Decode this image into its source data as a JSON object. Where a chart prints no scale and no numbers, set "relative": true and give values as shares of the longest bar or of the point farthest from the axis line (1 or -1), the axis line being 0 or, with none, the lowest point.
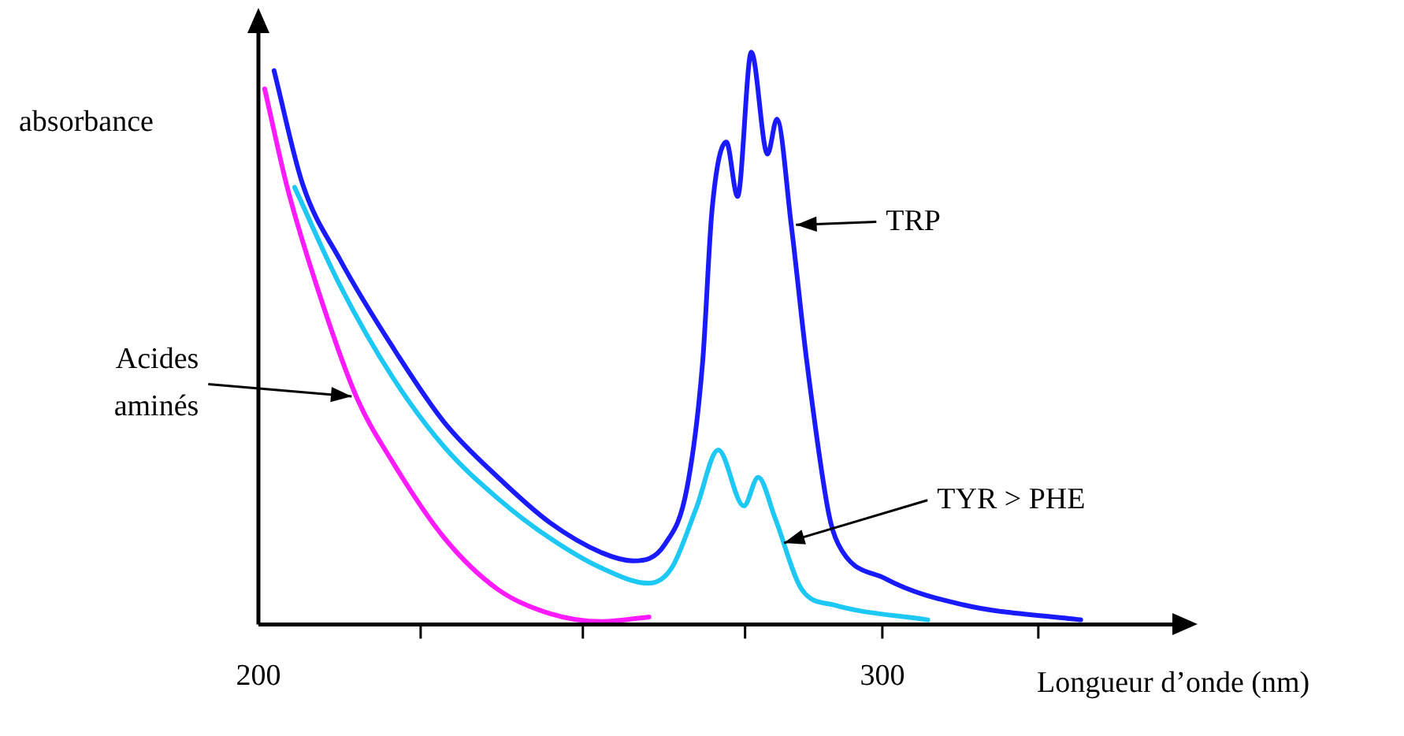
{
  "chart_data": {
    "type": "line",
    "xlabel": "Longueur d’onde (nm)",
    "ylabel": "absorbance",
    "relative": true,
    "xlim": [
      200,
      348
    ],
    "xticks": [
      200,
      {
        "value": 226,
        "label": null
      },
      {
        "value": 252,
        "label": null
      },
      {
        "value": 278,
        "label": null
      },
      300,
      {
        "value": 325,
        "label": null
      }
    ],
    "grid": false,
    "legend": false,
    "marker": "none",
    "line_style": "solid",
    "series": [
      {
        "color": "#1a1aff",
        "x": [
          202.5,
          207.1,
          213.1,
          221.5,
          229.8,
          238.4,
          246.7,
          255.1,
          260.1,
          265.2,
          268.7,
          271.2,
          272.7,
          275.0,
          276.8,
          279.0,
          281.6,
          283.1,
          285.4,
          287.9,
          291.4,
          292.9,
          300.5,
          313.1,
          331.8
        ],
        "values": [
          0.968,
          0.769,
          0.637,
          0.485,
          0.353,
          0.257,
          0.178,
          0.125,
          0.111,
          0.141,
          0.239,
          0.459,
          0.724,
          0.843,
          0.748,
          1,
          0.822,
          0.883,
          0.698,
          0.459,
          0.194,
          0.141,
          0.08,
          0.034,
          0.008
        ]
      },
      {
        "color": "#1ec8f5",
        "x": [
          205.8,
          213.1,
          221.5,
          229.8,
          238.4,
          246.7,
          255.1,
          262.6,
          266.2,
          270.2,
          273.7,
          277.8,
          280.1,
          282.8,
          287.1,
          292.2,
          307.3
        ],
        "values": [
          0.764,
          0.592,
          0.432,
          0.31,
          0.22,
          0.151,
          0.098,
          0.072,
          0.098,
          0.204,
          0.305,
          0.207,
          0.257,
          0.186,
          0.061,
          0.034,
          0.008
        ]
      },
      {
        "color": "#ff1aff",
        "x": [
          201.0,
          204.5,
          208.8,
          215.7,
          221.5,
          229.8,
          238.4,
          246.7,
          255.1,
          262.6
        ],
        "values": [
          0.936,
          0.769,
          0.61,
          0.398,
          0.284,
          0.151,
          0.061,
          0.019,
          0.005,
          0.013
        ]
      }
    ],
    "annotations": [
      {
        "text": "TRP",
        "x": 285.4,
        "y": 0.698
      },
      {
        "text": "TYR > PHE",
        "x": 283.5,
        "y": 0.14
      },
      {
        "text": "Acides aminés",
        "x": 215.7,
        "y": 0.398
      }
    ]
  }
}
